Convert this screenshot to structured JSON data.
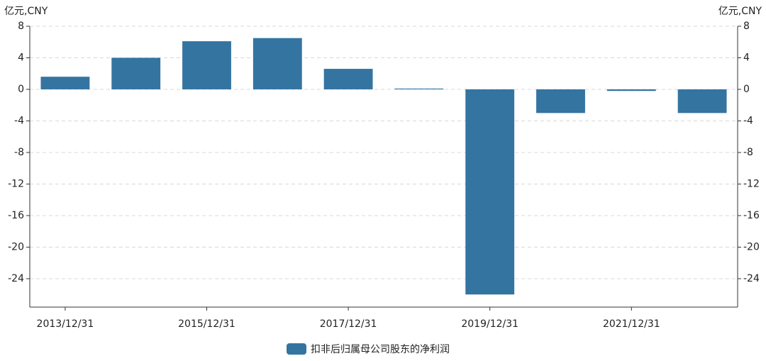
{
  "chart_data": {
    "type": "bar",
    "y_label": "亿元,CNY",
    "y2_label": "亿元,CNY",
    "categories": [
      "2013/12/31",
      null,
      "2015/12/31",
      null,
      "2017/12/31",
      null,
      "2019/12/31",
      null,
      "2021/12/31",
      null
    ],
    "series": [
      {
        "name": "扣非后归属母公司股东的净利润",
        "color": "#3474a1",
        "values": [
          1.6,
          4.0,
          6.1,
          6.5,
          2.6,
          0.1,
          -26.0,
          -3.0,
          -0.2,
          -3.0
        ]
      }
    ],
    "ylim": [
      -27.6,
      8
    ],
    "yticks": [
      -24,
      -20,
      -16,
      -12,
      -8,
      -4,
      0,
      4,
      8
    ],
    "y2lim": [
      -27.6,
      8
    ],
    "y2ticks": [
      -24,
      -20,
      -16,
      -12,
      -8,
      -4,
      0,
      4,
      8
    ],
    "grid": true,
    "legend": "bottom"
  }
}
